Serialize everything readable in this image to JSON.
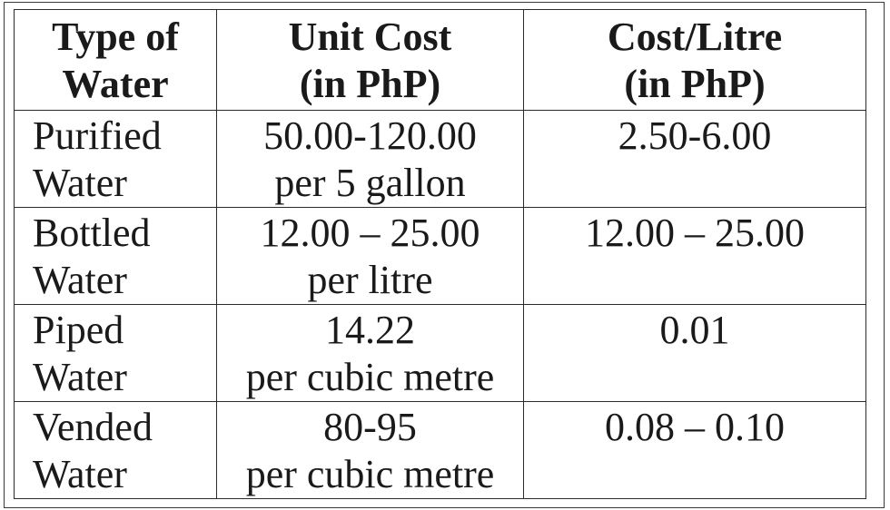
{
  "table": {
    "headers": [
      {
        "line1": "Type of",
        "line2": "Water"
      },
      {
        "line1": "Unit Cost",
        "line2": "(in PhP)"
      },
      {
        "line1": "Cost/Litre",
        "line2": "(in PhP)"
      }
    ],
    "rows": [
      {
        "type": {
          "line1": "Purified",
          "line2": "Water"
        },
        "unit_cost": {
          "line1": "50.00-120.00",
          "line2": "per 5 gallon"
        },
        "cost_per_litre": "2.50-6.00"
      },
      {
        "type": {
          "line1": "Bottled",
          "line2": "Water"
        },
        "unit_cost": {
          "line1": "12.00 – 25.00",
          "line2": "per litre"
        },
        "cost_per_litre": "12.00 – 25.00"
      },
      {
        "type": {
          "line1": "Piped",
          "line2": "Water"
        },
        "unit_cost": {
          "line1": "14.22",
          "line2": "per cubic metre"
        },
        "cost_per_litre": "0.01"
      },
      {
        "type": {
          "line1": "Vended",
          "line2": "Water"
        },
        "unit_cost": {
          "line1": "80-95",
          "line2": "per cubic metre"
        },
        "cost_per_litre": "0.08 – 0.10"
      }
    ]
  }
}
